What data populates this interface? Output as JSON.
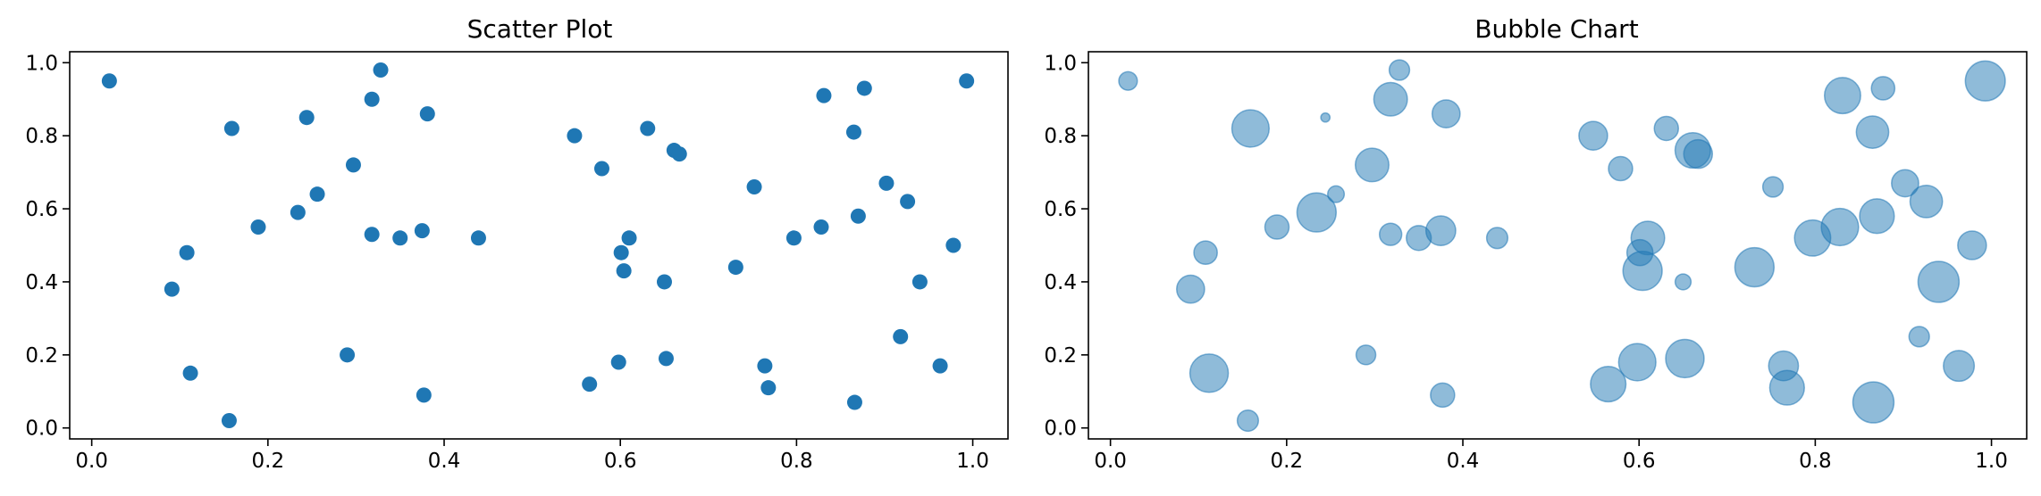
{
  "chart_data": [
    {
      "type": "scatter",
      "title": "Scatter Plot",
      "xlabel": "",
      "ylabel": "",
      "xlim": [
        -0.025,
        1.04
      ],
      "ylim": [
        -0.03,
        1.03
      ],
      "xticks": [
        "0.0",
        "0.2",
        "0.4",
        "0.6",
        "0.8",
        "1.0"
      ],
      "yticks": [
        "0.0",
        "0.2",
        "0.4",
        "0.6",
        "0.8",
        "1.0"
      ],
      "grid": false,
      "color": "#1f77b4",
      "points": [
        [
          0.02,
          0.95
        ],
        [
          0.159,
          0.82
        ],
        [
          0.244,
          0.85
        ],
        [
          0.318,
          0.9
        ],
        [
          0.328,
          0.98
        ],
        [
          0.381,
          0.86
        ],
        [
          0.297,
          0.72
        ],
        [
          0.256,
          0.64
        ],
        [
          0.234,
          0.59
        ],
        [
          0.189,
          0.55
        ],
        [
          0.318,
          0.53
        ],
        [
          0.35,
          0.52
        ],
        [
          0.375,
          0.54
        ],
        [
          0.439,
          0.52
        ],
        [
          0.108,
          0.48
        ],
        [
          0.091,
          0.38
        ],
        [
          0.112,
          0.15
        ],
        [
          0.156,
          0.02
        ],
        [
          0.29,
          0.2
        ],
        [
          0.377,
          0.09
        ],
        [
          0.548,
          0.8
        ],
        [
          0.579,
          0.71
        ],
        [
          0.631,
          0.82
        ],
        [
          0.661,
          0.76
        ],
        [
          0.667,
          0.75
        ],
        [
          0.61,
          0.52
        ],
        [
          0.601,
          0.48
        ],
        [
          0.604,
          0.43
        ],
        [
          0.65,
          0.4
        ],
        [
          0.565,
          0.12
        ],
        [
          0.598,
          0.18
        ],
        [
          0.652,
          0.19
        ],
        [
          0.752,
          0.66
        ],
        [
          0.731,
          0.44
        ],
        [
          0.764,
          0.17
        ],
        [
          0.768,
          0.11
        ],
        [
          0.797,
          0.52
        ],
        [
          0.828,
          0.55
        ],
        [
          0.831,
          0.91
        ],
        [
          0.877,
          0.93
        ],
        [
          0.865,
          0.81
        ],
        [
          0.87,
          0.58
        ],
        [
          0.902,
          0.67
        ],
        [
          0.926,
          0.62
        ],
        [
          0.978,
          0.5
        ],
        [
          0.94,
          0.4
        ],
        [
          0.918,
          0.25
        ],
        [
          0.963,
          0.17
        ],
        [
          0.866,
          0.07
        ],
        [
          0.993,
          0.95
        ]
      ]
    },
    {
      "type": "scatter",
      "title": "Bubble Chart",
      "xlabel": "",
      "ylabel": "",
      "xlim": [
        -0.025,
        1.04
      ],
      "ylim": [
        -0.03,
        1.03
      ],
      "xticks": [
        "0.0",
        "0.2",
        "0.4",
        "0.6",
        "0.8",
        "1.0"
      ],
      "yticks": [
        "0.0",
        "0.2",
        "0.4",
        "0.6",
        "0.8",
        "1.0"
      ],
      "grid": false,
      "color": "#1f77b4",
      "opacity": 0.5,
      "points_xy_sizeratio": [
        [
          0.02,
          0.95,
          0.35
        ],
        [
          0.159,
          0.82,
          0.85
        ],
        [
          0.244,
          0.85,
          0.1
        ],
        [
          0.318,
          0.9,
          0.75
        ],
        [
          0.328,
          0.98,
          0.4
        ],
        [
          0.381,
          0.86,
          0.6
        ],
        [
          0.297,
          0.72,
          0.75
        ],
        [
          0.256,
          0.64,
          0.3
        ],
        [
          0.234,
          0.59,
          0.9
        ],
        [
          0.189,
          0.55,
          0.5
        ],
        [
          0.318,
          0.53,
          0.45
        ],
        [
          0.35,
          0.52,
          0.52
        ],
        [
          0.375,
          0.54,
          0.65
        ],
        [
          0.439,
          0.52,
          0.42
        ],
        [
          0.108,
          0.48,
          0.48
        ],
        [
          0.091,
          0.38,
          0.6
        ],
        [
          0.112,
          0.15,
          0.88
        ],
        [
          0.156,
          0.02,
          0.42
        ],
        [
          0.29,
          0.2,
          0.38
        ],
        [
          0.377,
          0.09,
          0.5
        ],
        [
          0.548,
          0.8,
          0.62
        ],
        [
          0.579,
          0.71,
          0.5
        ],
        [
          0.631,
          0.82,
          0.5
        ],
        [
          0.661,
          0.76,
          0.8
        ],
        [
          0.667,
          0.75,
          0.62
        ],
        [
          0.61,
          0.52,
          0.75
        ],
        [
          0.601,
          0.48,
          0.55
        ],
        [
          0.604,
          0.43,
          0.9
        ],
        [
          0.65,
          0.4,
          0.28
        ],
        [
          0.565,
          0.12,
          0.8
        ],
        [
          0.598,
          0.18,
          0.85
        ],
        [
          0.652,
          0.19,
          0.88
        ],
        [
          0.752,
          0.66,
          0.4
        ],
        [
          0.731,
          0.44,
          0.9
        ],
        [
          0.764,
          0.17,
          0.65
        ],
        [
          0.768,
          0.11,
          0.78
        ],
        [
          0.797,
          0.52,
          0.82
        ],
        [
          0.828,
          0.55,
          0.85
        ],
        [
          0.831,
          0.91,
          0.82
        ],
        [
          0.877,
          0.93,
          0.48
        ],
        [
          0.865,
          0.81,
          0.72
        ],
        [
          0.87,
          0.58,
          0.78
        ],
        [
          0.902,
          0.67,
          0.58
        ],
        [
          0.926,
          0.62,
          0.72
        ],
        [
          0.978,
          0.5,
          0.62
        ],
        [
          0.94,
          0.4,
          0.95
        ],
        [
          0.918,
          0.25,
          0.4
        ],
        [
          0.963,
          0.17,
          0.68
        ],
        [
          0.866,
          0.07,
          0.95
        ],
        [
          0.993,
          0.95,
          0.92
        ]
      ]
    }
  ]
}
